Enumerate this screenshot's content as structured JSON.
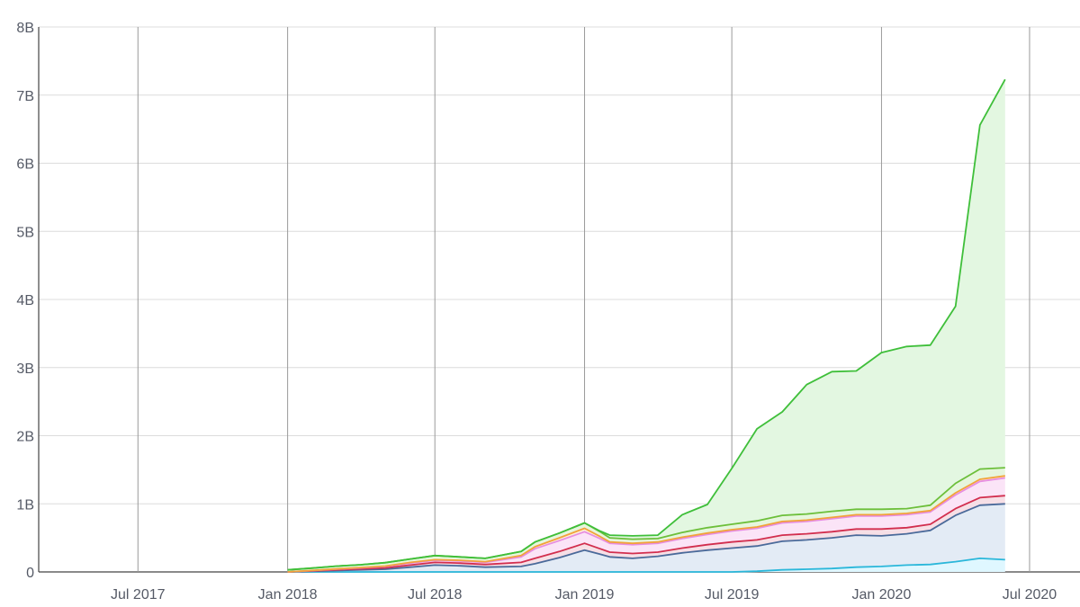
{
  "chart_data": {
    "type": "area",
    "title": "",
    "xlabel": "",
    "ylabel": "",
    "ylim": [
      0,
      8000000000
    ],
    "xlim": [
      "2017-03-01",
      "2020-09-01"
    ],
    "stacked": true,
    "grid": true,
    "legend": "none",
    "y_ticks": [
      {
        "value": 0,
        "label": "0"
      },
      {
        "value": 1000000000,
        "label": "1B"
      },
      {
        "value": 2000000000,
        "label": "2B"
      },
      {
        "value": 3000000000,
        "label": "3B"
      },
      {
        "value": 4000000000,
        "label": "4B"
      },
      {
        "value": 5000000000,
        "label": "5B"
      },
      {
        "value": 6000000000,
        "label": "6B"
      },
      {
        "value": 7000000000,
        "label": "7B"
      },
      {
        "value": 8000000000,
        "label": "8B"
      }
    ],
    "x_ticks": [
      {
        "value": "2017-07-01",
        "label": "Jul 2017"
      },
      {
        "value": "2018-01-01",
        "label": "Jan 2018"
      },
      {
        "value": "2018-07-01",
        "label": "Jul 2018"
      },
      {
        "value": "2019-01-01",
        "label": "Jan 2019"
      },
      {
        "value": "2019-07-01",
        "label": "Jul 2019"
      },
      {
        "value": "2020-01-01",
        "label": "Jan 2020"
      },
      {
        "value": "2020-07-01",
        "label": "Jul 2020"
      }
    ],
    "x": [
      "2018-01-01",
      "2018-02-01",
      "2018-03-01",
      "2018-04-01",
      "2018-05-01",
      "2018-06-01",
      "2018-07-01",
      "2018-08-01",
      "2018-09-01",
      "2018-10-15",
      "2018-11-01",
      "2018-12-01",
      "2019-01-01",
      "2019-01-20",
      "2019-02-01",
      "2019-03-01",
      "2019-04-01",
      "2019-05-01",
      "2019-06-01",
      "2019-07-01",
      "2019-08-01",
      "2019-09-01",
      "2019-10-01",
      "2019-11-01",
      "2019-12-01",
      "2020-01-01",
      "2020-02-01",
      "2020-03-01",
      "2020-04-01",
      "2020-05-01",
      "2020-06-01"
    ],
    "series": [
      {
        "color": "#dff7ff",
        "line": "#2ab7da",
        "values": [
          0,
          0,
          0,
          0,
          0,
          0,
          0,
          0,
          0,
          0,
          0,
          0,
          0,
          0,
          0,
          0,
          0,
          0,
          0,
          0,
          0.01,
          0.03,
          0.04,
          0.05,
          0.07,
          0.08,
          0.1,
          0.11,
          0.15,
          0.2,
          0.18
        ]
      },
      {
        "color": "#e3ebf5",
        "line": "#4a6a9a",
        "values": [
          0,
          0.01,
          0.02,
          0.03,
          0.04,
          0.07,
          0.1,
          0.09,
          0.07,
          0.08,
          0.12,
          0.21,
          0.32,
          0.26,
          0.22,
          0.2,
          0.23,
          0.28,
          0.32,
          0.35,
          0.37,
          0.42,
          0.43,
          0.45,
          0.47,
          0.45,
          0.46,
          0.5,
          0.68,
          0.78,
          0.82
        ]
      },
      {
        "color": "#f6dfe6",
        "line": "#d22e4e",
        "values": [
          0,
          0.005,
          0.01,
          0.015,
          0.02,
          0.03,
          0.04,
          0.04,
          0.04,
          0.06,
          0.08,
          0.09,
          0.1,
          0.08,
          0.07,
          0.07,
          0.06,
          0.07,
          0.08,
          0.09,
          0.09,
          0.09,
          0.09,
          0.09,
          0.09,
          0.1,
          0.09,
          0.09,
          0.1,
          0.11,
          0.12
        ]
      },
      {
        "color": "#fbe4f7",
        "line": "#e78de0",
        "values": [
          0,
          0.005,
          0.01,
          0.015,
          0.02,
          0.03,
          0.03,
          0.03,
          0.03,
          0.08,
          0.14,
          0.16,
          0.17,
          0.15,
          0.13,
          0.13,
          0.13,
          0.14,
          0.15,
          0.16,
          0.17,
          0.18,
          0.18,
          0.19,
          0.19,
          0.19,
          0.19,
          0.18,
          0.2,
          0.24,
          0.26
        ]
      },
      {
        "color": "#fdefd8",
        "line": "#f2a23a",
        "values": [
          0,
          0.002,
          0.004,
          0.005,
          0.006,
          0.01,
          0.01,
          0.01,
          0.01,
          0.02,
          0.03,
          0.04,
          0.05,
          0.03,
          0.02,
          0.02,
          0.02,
          0.02,
          0.02,
          0.02,
          0.02,
          0.02,
          0.02,
          0.02,
          0.02,
          0.02,
          0.02,
          0.02,
          0.03,
          0.03,
          0.03
        ]
      },
      {
        "color": "#e6f6dd",
        "line": "#6cbf3a",
        "values": [
          0.03,
          0.035,
          0.04,
          0.04,
          0.05,
          0.05,
          0.06,
          0.05,
          0.05,
          0.06,
          0.07,
          0.07,
          0.08,
          0.07,
          0.06,
          0.06,
          0.05,
          0.07,
          0.08,
          0.08,
          0.09,
          0.09,
          0.09,
          0.09,
          0.08,
          0.08,
          0.07,
          0.08,
          0.14,
          0.15,
          0.12
        ]
      },
      {
        "color": "#e3f7e1",
        "line": "#3fbf3a",
        "values": [
          0,
          0,
          0,
          0,
          0,
          0,
          0,
          0,
          0,
          0,
          0,
          0,
          0,
          0.01,
          0.04,
          0.05,
          0.05,
          0.26,
          0.34,
          0.82,
          1.35,
          1.52,
          1.9,
          2.05,
          2.03,
          2.3,
          2.38,
          2.35,
          2.6,
          5.05,
          5.7
        ]
      }
    ]
  }
}
